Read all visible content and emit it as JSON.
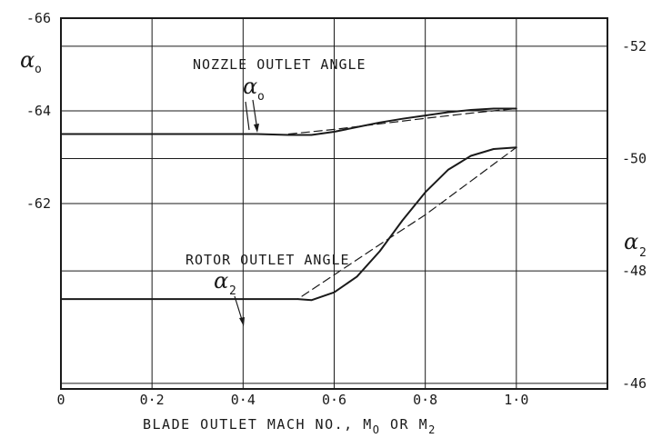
{
  "chart_data": {
    "type": "line",
    "xlabel": "BLADE OUTLET MACH NO., M",
    "xlabel_sub1": "O",
    "xlabel_mid": " OR M",
    "xlabel_sub2": "2",
    "xlim": [
      0,
      1.2
    ],
    "x_ticks": [
      0,
      0.2,
      0.4,
      0.6,
      0.8,
      1.0
    ],
    "x_tick_labels": [
      "0",
      "0·2",
      "0·4",
      "0·6",
      "0·8",
      "1·0"
    ],
    "left_axis": {
      "symbol": "α",
      "subscript": "o",
      "ticks": [
        -66,
        -64,
        -62
      ],
      "tick_labels": [
        "-66",
        "-64",
        "-62"
      ],
      "range": [
        -66,
        -58
      ],
      "reversed": true
    },
    "right_axis": {
      "symbol": "α",
      "subscript": "2",
      "ticks": [
        -52,
        -50,
        -48,
        -46
      ],
      "tick_labels": [
        "-52",
        "-50",
        "-48",
        "-46"
      ],
      "range": [
        -52.5,
        -45.9
      ]
    },
    "grid": true,
    "annotations": [
      {
        "text": "NOZZLE OUTLET ANGLE",
        "symbol": "α",
        "subscript": "o"
      },
      {
        "text": "ROTOR OUTLET ANGLE",
        "symbol": "α",
        "subscript": "2"
      }
    ],
    "series": [
      {
        "axis": "left",
        "style": "solid",
        "x": [
          0.0,
          0.2,
          0.43,
          0.5,
          0.55,
          0.6,
          0.65,
          0.7,
          0.75,
          0.8,
          0.85,
          0.9,
          0.95,
          1.0
        ],
        "y": [
          -63.5,
          -63.5,
          -63.5,
          -63.48,
          -63.48,
          -63.55,
          -63.65,
          -63.75,
          -63.83,
          -63.9,
          -63.97,
          -64.02,
          -64.05,
          -64.05
        ]
      },
      {
        "axis": "left",
        "style": "dashed",
        "x": [
          0.5,
          0.6,
          0.7,
          0.8,
          0.9,
          1.0
        ],
        "y": [
          -63.5,
          -63.6,
          -63.72,
          -63.84,
          -63.95,
          -64.05
        ]
      },
      {
        "axis": "right",
        "style": "solid",
        "x": [
          0.0,
          0.2,
          0.4,
          0.52,
          0.55,
          0.6,
          0.65,
          0.7,
          0.75,
          0.8,
          0.85,
          0.9,
          0.95,
          1.0
        ],
        "y": [
          -47.5,
          -47.5,
          -47.5,
          -47.5,
          -47.48,
          -47.62,
          -47.9,
          -48.35,
          -48.9,
          -49.4,
          -49.8,
          -50.05,
          -50.17,
          -50.2
        ]
      },
      {
        "axis": "right",
        "style": "dashed",
        "x": [
          0.0,
          0.2,
          0.4,
          0.52,
          0.6,
          0.7,
          0.8,
          0.9,
          1.0
        ],
        "y": [
          -47.5,
          -47.5,
          -47.5,
          -47.5,
          -47.93,
          -48.47,
          -49.0,
          -49.6,
          -50.2
        ]
      }
    ]
  }
}
